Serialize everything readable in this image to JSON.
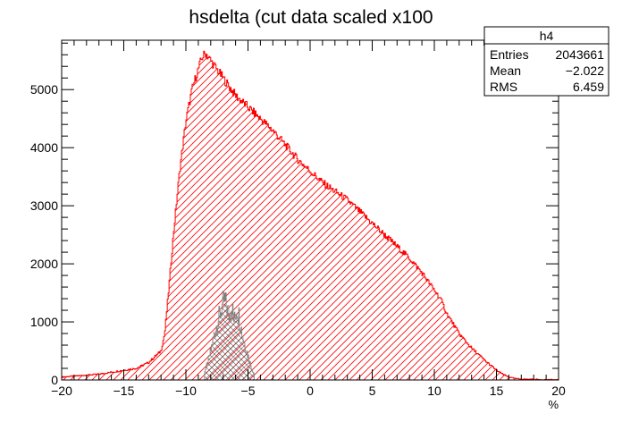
{
  "chart_data": {
    "type": "histogram",
    "title": "hsdelta (cut data scaled x100",
    "xlabel": "%",
    "ylabel": "",
    "xlim": [
      -20,
      20
    ],
    "ylim": [
      0,
      5850
    ],
    "x_ticks": [
      -20,
      -15,
      -10,
      -5,
      0,
      5,
      10,
      15,
      20
    ],
    "x_tick_labels": [
      "−20",
      "−15",
      "−10",
      "−5",
      "0",
      "5",
      "10",
      "15",
      "20"
    ],
    "y_ticks": [
      0,
      1000,
      2000,
      3000,
      4000,
      5000
    ],
    "y_tick_labels": [
      "0",
      "1000",
      "2000",
      "3000",
      "4000",
      "5000"
    ],
    "grid": false,
    "stats_box": {
      "title": "h4",
      "rows": [
        {
          "label": "Entries",
          "value": "2043661"
        },
        {
          "label": "Mean",
          "value": "−2.022"
        },
        {
          "label": "RMS",
          "value": "6.459"
        }
      ],
      "placement": "top-right"
    },
    "series": [
      {
        "color": "#ff0000",
        "fill": "hatched-diagonal",
        "x": [
          -20,
          -17,
          -14,
          -13,
          -12.5,
          -12,
          -11.7,
          -11.4,
          -11,
          -10.5,
          -10,
          -9.5,
          -9,
          -8.7,
          -8.4,
          -8,
          -7,
          -6,
          -5,
          -4,
          -3,
          -2,
          -1,
          0,
          1,
          2,
          3,
          4,
          5,
          6,
          7,
          8,
          9,
          10,
          10.5,
          11,
          12,
          13,
          14,
          15,
          15.5,
          16,
          16.5,
          17,
          18,
          19,
          20
        ],
        "values": [
          50,
          100,
          200,
          300,
          400,
          500,
          800,
          1500,
          2500,
          3600,
          4450,
          5000,
          5350,
          5550,
          5630,
          5500,
          5200,
          4900,
          4700,
          4500,
          4300,
          4050,
          3800,
          3600,
          3400,
          3250,
          3100,
          2900,
          2700,
          2500,
          2300,
          2100,
          1850,
          1550,
          1400,
          1150,
          800,
          550,
          350,
          170,
          100,
          50,
          25,
          15,
          10,
          5,
          3
        ]
      },
      {
        "color": "#808080",
        "fill": "cross-hatched",
        "x": [
          -8.5,
          -8.3,
          -8.1,
          -7.9,
          -7.7,
          -7.5,
          -7.3,
          -7.1,
          -6.9,
          -6.7,
          -6.5,
          -6.3,
          -6.1,
          -5.9,
          -5.7,
          -5.5,
          -5.3,
          -5.1,
          -4.9,
          -4.7,
          -4.5
        ],
        "values": [
          150,
          250,
          400,
          600,
          800,
          950,
          1100,
          1250,
          1380,
          1250,
          1100,
          1300,
          1000,
          1250,
          1100,
          850,
          650,
          500,
          350,
          200,
          100
        ]
      }
    ]
  }
}
